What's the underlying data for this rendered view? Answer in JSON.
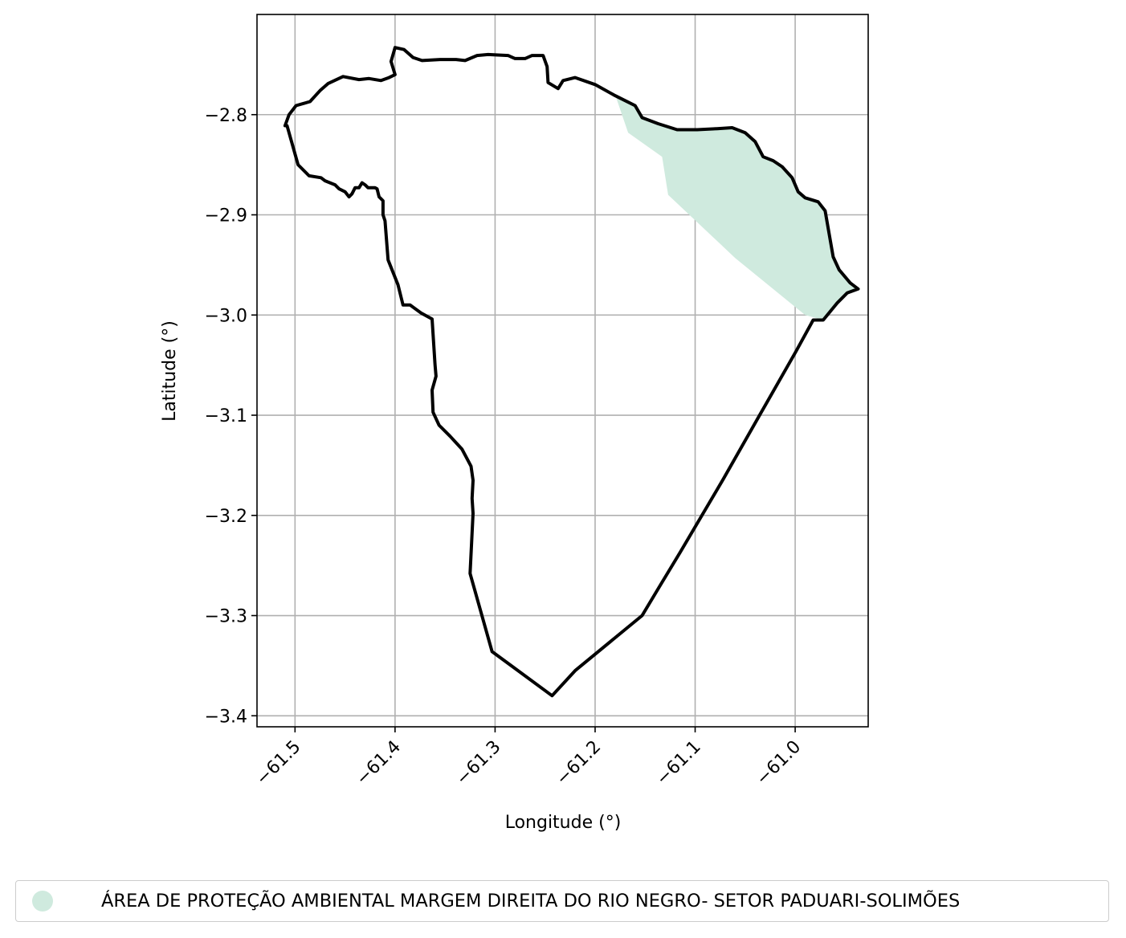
{
  "colors": {
    "boundary": "#000000",
    "protected_area_fill": "#cfeade",
    "grid": "#b0b0b0"
  },
  "chart_data": {
    "type": "map",
    "title": "",
    "xlabel": "Longitude (°)",
    "ylabel": "Latitude (°)",
    "xlim": [
      -61.538,
      -60.927
    ],
    "ylim": [
      -3.411,
      -2.7
    ],
    "grid": true,
    "legend_position": "bottom-center",
    "x_ticks": [
      {
        "value": -61.5,
        "label": "−61.5"
      },
      {
        "value": -61.4,
        "label": "−61.4"
      },
      {
        "value": -61.3,
        "label": "−61.3"
      },
      {
        "value": -61.2,
        "label": "−61.2"
      },
      {
        "value": -61.1,
        "label": "−61.1"
      },
      {
        "value": -61.0,
        "label": "−61.0"
      }
    ],
    "y_ticks": [
      {
        "value": -2.8,
        "label": "−2.8"
      },
      {
        "value": -2.9,
        "label": "−2.9"
      },
      {
        "value": -3.0,
        "label": "−3.0"
      },
      {
        "value": -3.1,
        "label": "−3.1"
      },
      {
        "value": -3.2,
        "label": "−3.2"
      },
      {
        "value": -3.3,
        "label": "−3.3"
      },
      {
        "value": -3.4,
        "label": "−3.4"
      }
    ],
    "boundary": [
      [
        -61.51,
        -2.811
      ],
      [
        -61.506,
        -2.8
      ],
      [
        -61.499,
        -2.791
      ],
      [
        -61.485,
        -2.787
      ],
      [
        -61.475,
        -2.776
      ],
      [
        -61.467,
        -2.769
      ],
      [
        -61.452,
        -2.762
      ],
      [
        -61.436,
        -2.765
      ],
      [
        -61.426,
        -2.764
      ],
      [
        -61.414,
        -2.766
      ],
      [
        -61.406,
        -2.763
      ],
      [
        -61.4,
        -2.76
      ],
      [
        -61.404,
        -2.747
      ],
      [
        -61.4,
        -2.733
      ],
      [
        -61.391,
        -2.735
      ],
      [
        -61.382,
        -2.743
      ],
      [
        -61.373,
        -2.746
      ],
      [
        -61.355,
        -2.745
      ],
      [
        -61.339,
        -2.745
      ],
      [
        -61.33,
        -2.746
      ],
      [
        -61.318,
        -2.741
      ],
      [
        -61.307,
        -2.74
      ],
      [
        -61.287,
        -2.741
      ],
      [
        -61.28,
        -2.744
      ],
      [
        -61.27,
        -2.744
      ],
      [
        -61.263,
        -2.741
      ],
      [
        -61.252,
        -2.741
      ],
      [
        -61.248,
        -2.752
      ],
      [
        -61.247,
        -2.768
      ],
      [
        -61.237,
        -2.774
      ],
      [
        -61.232,
        -2.766
      ],
      [
        -61.22,
        -2.763
      ],
      [
        -61.2,
        -2.77
      ],
      [
        -61.18,
        -2.781
      ],
      [
        -61.16,
        -2.791
      ],
      [
        -61.153,
        -2.803
      ],
      [
        -61.137,
        -2.809
      ],
      [
        -61.118,
        -2.815
      ],
      [
        -61.098,
        -2.815
      ],
      [
        -61.078,
        -2.814
      ],
      [
        -61.063,
        -2.813
      ],
      [
        -61.05,
        -2.818
      ],
      [
        -61.04,
        -2.827
      ],
      [
        -61.032,
        -2.842
      ],
      [
        -61.022,
        -2.846
      ],
      [
        -61.013,
        -2.852
      ],
      [
        -61.003,
        -2.863
      ],
      [
        -60.997,
        -2.877
      ],
      [
        -60.99,
        -2.883
      ],
      [
        -60.977,
        -2.887
      ],
      [
        -60.97,
        -2.896
      ],
      [
        -60.965,
        -2.925
      ],
      [
        -60.962,
        -2.942
      ],
      [
        -60.956,
        -2.955
      ],
      [
        -60.945,
        -2.968
      ],
      [
        -60.937,
        -2.974
      ],
      [
        -60.948,
        -2.978
      ],
      [
        -60.958,
        -2.988
      ],
      [
        -60.972,
        -3.005
      ],
      [
        -60.982,
        -3.005
      ],
      [
        -60.999,
        -3.036
      ],
      [
        -61.035,
        -3.099
      ],
      [
        -61.072,
        -3.164
      ],
      [
        -61.115,
        -3.237
      ],
      [
        -61.135,
        -3.27
      ],
      [
        -61.153,
        -3.3
      ],
      [
        -61.22,
        -3.355
      ],
      [
        -61.243,
        -3.38
      ],
      [
        -61.303,
        -3.336
      ],
      [
        -61.325,
        -3.258
      ],
      [
        -61.322,
        -3.198
      ],
      [
        -61.323,
        -3.183
      ],
      [
        -61.322,
        -3.165
      ],
      [
        -61.324,
        -3.151
      ],
      [
        -61.333,
        -3.134
      ],
      [
        -61.345,
        -3.121
      ],
      [
        -61.356,
        -3.11
      ],
      [
        -61.362,
        -3.097
      ],
      [
        -61.363,
        -3.075
      ],
      [
        -61.359,
        -3.061
      ],
      [
        -61.36,
        -3.05
      ],
      [
        -61.363,
        -3.004
      ],
      [
        -61.374,
        -2.998
      ],
      [
        -61.385,
        -2.99
      ],
      [
        -61.392,
        -2.99
      ],
      [
        -61.397,
        -2.97
      ],
      [
        -61.407,
        -2.945
      ],
      [
        -61.41,
        -2.906
      ],
      [
        -61.412,
        -2.9
      ],
      [
        -61.412,
        -2.893
      ],
      [
        -61.412,
        -2.886
      ],
      [
        -61.416,
        -2.882
      ],
      [
        -61.418,
        -2.874
      ],
      [
        -61.42,
        -2.873
      ],
      [
        -61.427,
        -2.873
      ],
      [
        -61.43,
        -2.87
      ],
      [
        -61.433,
        -2.868
      ],
      [
        -61.436,
        -2.873
      ],
      [
        -61.44,
        -2.873
      ],
      [
        -61.443,
        -2.879
      ],
      [
        -61.446,
        -2.882
      ],
      [
        -61.45,
        -2.877
      ],
      [
        -61.456,
        -2.874
      ],
      [
        -61.46,
        -2.87
      ],
      [
        -61.47,
        -2.866
      ],
      [
        -61.474,
        -2.863
      ],
      [
        -61.486,
        -2.861
      ],
      [
        -61.497,
        -2.85
      ],
      [
        -61.508,
        -2.811
      ]
    ],
    "protected_area": [
      [
        -61.18,
        -2.78
      ],
      [
        -61.16,
        -2.791
      ],
      [
        -61.153,
        -2.803
      ],
      [
        -61.137,
        -2.809
      ],
      [
        -61.118,
        -2.815
      ],
      [
        -61.098,
        -2.815
      ],
      [
        -61.078,
        -2.814
      ],
      [
        -61.063,
        -2.813
      ],
      [
        -61.05,
        -2.818
      ],
      [
        -61.04,
        -2.827
      ],
      [
        -61.032,
        -2.842
      ],
      [
        -61.022,
        -2.846
      ],
      [
        -61.013,
        -2.852
      ],
      [
        -61.003,
        -2.863
      ],
      [
        -60.997,
        -2.877
      ],
      [
        -60.99,
        -2.883
      ],
      [
        -60.977,
        -2.887
      ],
      [
        -60.97,
        -2.896
      ],
      [
        -60.965,
        -2.925
      ],
      [
        -60.962,
        -2.942
      ],
      [
        -60.956,
        -2.955
      ],
      [
        -60.945,
        -2.968
      ],
      [
        -60.937,
        -2.974
      ],
      [
        -60.948,
        -2.978
      ],
      [
        -60.958,
        -2.988
      ],
      [
        -60.972,
        -3.005
      ],
      [
        -60.99,
        -3.0
      ],
      [
        -61.06,
        -2.943
      ],
      [
        -61.127,
        -2.88
      ],
      [
        -61.133,
        -2.842
      ],
      [
        -61.167,
        -2.818
      ]
    ]
  },
  "legend": {
    "label": "ÁREA DE PROTEÇÃO AMBIENTAL MARGEM DIREITA DO RIO NEGRO- SETOR PADUARI-SOLIMÕES"
  }
}
